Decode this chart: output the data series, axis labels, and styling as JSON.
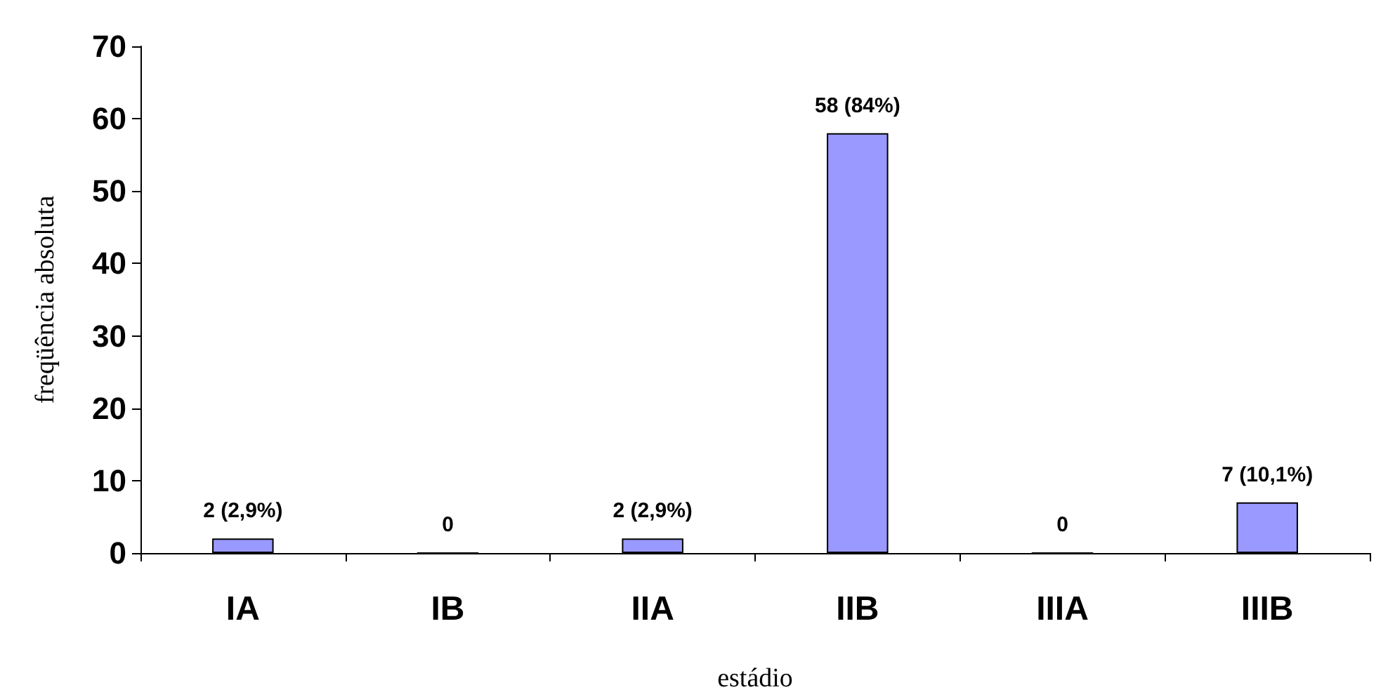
{
  "chart_data": {
    "type": "bar",
    "xlabel": "estádio",
    "ylabel": "freqüência absoluta",
    "categories": [
      "IA",
      "IB",
      "IIA",
      "IIB",
      "IIIA",
      "IIIB"
    ],
    "values": [
      2,
      0,
      2,
      58,
      0,
      7
    ],
    "value_labels": [
      "2 (2,9%)",
      "0",
      "2 (2,9%)",
      "58 (84%)",
      "0",
      "7 (10,1%)"
    ],
    "color": "#9999ff",
    "ylim": [
      0,
      70
    ],
    "yticks": [
      0,
      10,
      20,
      30,
      40,
      50,
      60,
      70
    ],
    "grid": false
  }
}
